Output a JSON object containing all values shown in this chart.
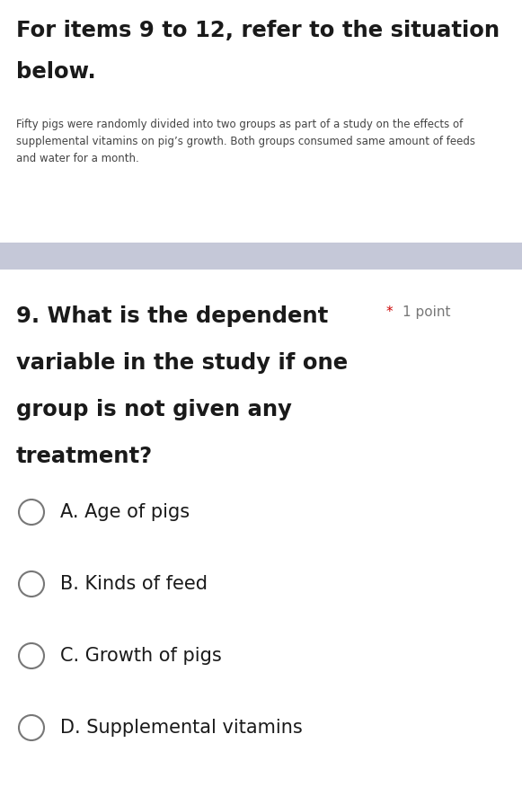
{
  "background_color": "#ffffff",
  "header_text_line1": "For items 9 to 12, refer to the situation",
  "header_text_line2": "below.",
  "header_fontsize": 17.5,
  "header_color": "#1a1a1a",
  "scenario_text": "Fifty pigs were randomly divided into two groups as part of a study on the effects of\nsupplemental vitamins on pig’s growth. Both groups consumed same amount of feeds\nand water for a month.",
  "scenario_fontsize": 8.5,
  "scenario_color": "#444444",
  "divider_color": "#c5c8d8",
  "question_text_lines": [
    "9. What is the dependent",
    "variable in the study if one",
    "group is not given any",
    "treatment?"
  ],
  "question_fontsize": 17.5,
  "question_color": "#1a1a1a",
  "points_star": "*",
  "points_text": "1 point",
  "points_star_color": "#cc0000",
  "points_text_color": "#777777",
  "points_fontsize": 11,
  "choices": [
    "A. Age of pigs",
    "B. Kinds of feed",
    "C. Growth of pigs",
    "D. Supplemental vitamins"
  ],
  "choice_fontsize": 15,
  "choice_color": "#1a1a1a",
  "circle_edge_color": "#777777",
  "circle_face_color": "#ffffff",
  "circle_linewidth": 1.5
}
